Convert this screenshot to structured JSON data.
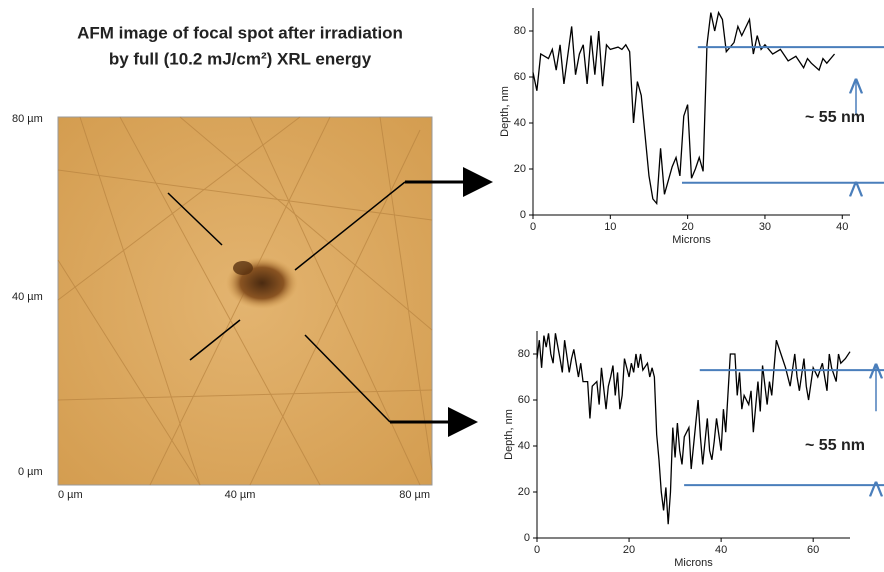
{
  "afm_image": {
    "title": [
      "AFM image of focal spot after irradiation",
      "by full (10.2 mJ/cm²) XRL energy"
    ],
    "y_tick_labels": [
      "80 µm",
      "40 µm",
      "0 µm"
    ],
    "x_tick_labels": [
      "0 µm",
      "40 µm",
      "80 µm"
    ]
  },
  "chart_data": [
    {
      "type": "line",
      "xlabel": "Microns",
      "ylabel": "Depth, nm",
      "annotation": "~ 55 nm",
      "reference_lines": [
        73,
        14
      ],
      "reference_color": "#4a7ebb",
      "xlim": [
        0,
        41
      ],
      "ylim": [
        0,
        90
      ],
      "xticks": [
        0,
        10,
        20,
        30,
        40
      ],
      "yticks": [
        0,
        20,
        40,
        60,
        80
      ],
      "series": [
        {
          "color": "#000000",
          "x": [
            0,
            0.5,
            1,
            2,
            2.5,
            3,
            3.5,
            4,
            5,
            5.5,
            6,
            6.5,
            7,
            7.5,
            8,
            8.5,
            9,
            9.5,
            10,
            11,
            11.5,
            12,
            12.5,
            13,
            13.5,
            14,
            15,
            15.5,
            16,
            16.5,
            17,
            18,
            18.5,
            19,
            19.5,
            20,
            20.5,
            21,
            21.5,
            22,
            22.5,
            23,
            23.5,
            24,
            24.5,
            25,
            26,
            26.5,
            27,
            28,
            28.5,
            29,
            29.5,
            30,
            31,
            32,
            33,
            34,
            35,
            35.5,
            36,
            37,
            37.5,
            38,
            39
          ],
          "values": [
            62,
            54,
            70,
            68,
            72,
            63,
            74,
            57,
            82,
            61,
            70,
            74,
            57,
            78,
            61,
            80,
            56,
            74,
            72,
            73,
            72,
            74,
            71,
            40,
            58,
            52,
            17,
            7,
            5,
            29,
            9,
            21,
            25,
            17,
            43,
            48,
            16,
            20,
            25,
            19,
            74,
            88,
            80,
            88,
            85,
            71,
            75,
            82,
            78,
            85,
            70,
            78,
            72,
            74,
            70,
            72,
            67,
            69,
            64,
            68,
            66,
            63,
            68,
            66,
            70
          ]
        }
      ]
    },
    {
      "type": "line",
      "xlabel": "Microns",
      "ylabel": "Depth, nm",
      "annotation": "~ 55 nm",
      "reference_lines": [
        73,
        23
      ],
      "reference_color": "#4a7ebb",
      "xlim": [
        0,
        68
      ],
      "ylim": [
        0,
        90
      ],
      "xticks": [
        0,
        20,
        40,
        60
      ],
      "yticks": [
        0,
        20,
        40,
        60,
        80
      ],
      "series": [
        {
          "color": "#000000",
          "x": [
            0,
            0.5,
            1,
            1.5,
            2,
            2.5,
            3,
            3.5,
            4,
            5,
            5.5,
            6,
            7,
            7.5,
            8,
            9,
            9.5,
            10,
            11,
            11.5,
            12,
            13,
            13.5,
            14,
            15,
            15.5,
            16,
            16.5,
            17,
            17.5,
            18,
            18.5,
            19,
            20,
            20.5,
            21,
            21.5,
            22,
            22.5,
            23,
            24,
            24.5,
            25,
            25.5,
            26,
            26.5,
            27,
            27.5,
            28,
            28.5,
            29,
            29.5,
            30,
            30.5,
            31,
            31.5,
            32,
            33,
            33.5,
            34,
            35,
            35.5,
            36,
            37,
            37.5,
            38,
            38.5,
            39,
            40,
            40.5,
            41,
            42,
            43,
            43.5,
            44,
            44.5,
            45,
            46,
            46.5,
            47,
            48,
            48.5,
            49,
            50,
            50.5,
            51,
            52,
            53,
            54,
            55,
            56,
            56.5,
            57,
            58,
            58.5,
            59,
            60,
            61,
            62,
            63,
            63.5,
            64,
            65,
            65.5,
            66,
            67,
            68
          ],
          "values": [
            78,
            86,
            74,
            88,
            83,
            89,
            80,
            76,
            89,
            78,
            72,
            86,
            72,
            78,
            82,
            70,
            76,
            68,
            68,
            52,
            66,
            68,
            58,
            74,
            56,
            66,
            70,
            75,
            62,
            72,
            56,
            62,
            78,
            70,
            76,
            72,
            80,
            74,
            80,
            73,
            76,
            70,
            74,
            70,
            45,
            34,
            20,
            12,
            22,
            6,
            20,
            48,
            35,
            50,
            38,
            32,
            44,
            48,
            30,
            40,
            60,
            44,
            32,
            52,
            38,
            34,
            42,
            52,
            38,
            56,
            46,
            80,
            80,
            62,
            72,
            56,
            62,
            58,
            64,
            46,
            68,
            55,
            75,
            58,
            68,
            62,
            86,
            80,
            74,
            66,
            80,
            70,
            64,
            78,
            66,
            60,
            74,
            70,
            76,
            64,
            80,
            74,
            68,
            80,
            76,
            78,
            81
          ]
        }
      ]
    }
  ]
}
